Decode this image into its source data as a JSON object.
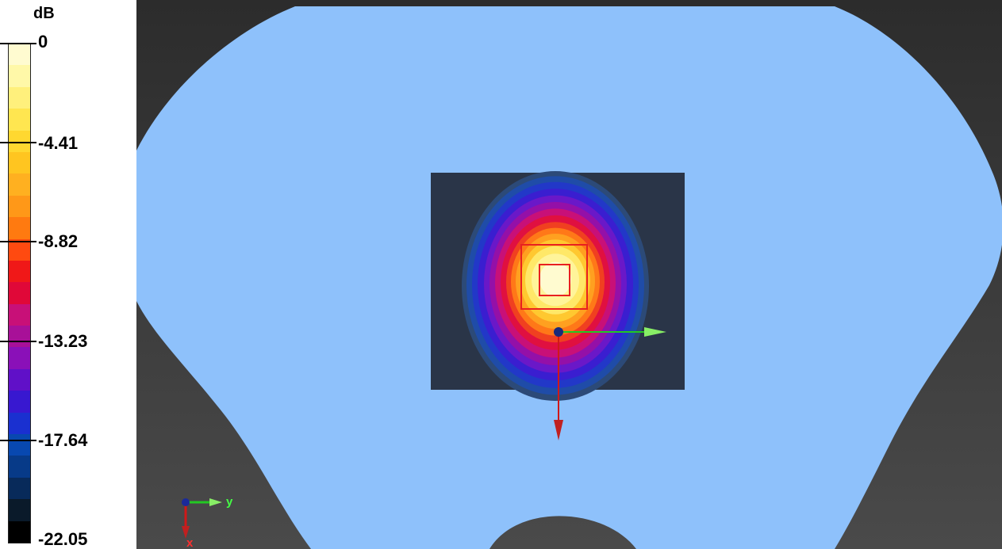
{
  "legend": {
    "unit": "dB",
    "ticks": [
      "0",
      "-4.41",
      "-8.82",
      "-13.23",
      "-17.64",
      "-22.05"
    ],
    "colors": [
      "#fffbd0",
      "#fff8a8",
      "#fff07c",
      "#ffe650",
      "#ffd830",
      "#ffc520",
      "#ffb020",
      "#ff9818",
      "#ff7a10",
      "#ff4a10",
      "#f01818",
      "#e00838",
      "#c81078",
      "#a81098",
      "#8a10b8",
      "#6010c8",
      "#3818d0",
      "#1a30d0",
      "#0848b0",
      "#073a88",
      "#082a5a",
      "#0a1a2a",
      "#000000"
    ]
  },
  "scene": {
    "body_color": "#8ec1fb",
    "background_color": "#2f2f2f",
    "region_color": "#2a3548"
  },
  "axes_indicator": {
    "y_label": "y",
    "x_label": "x"
  }
}
